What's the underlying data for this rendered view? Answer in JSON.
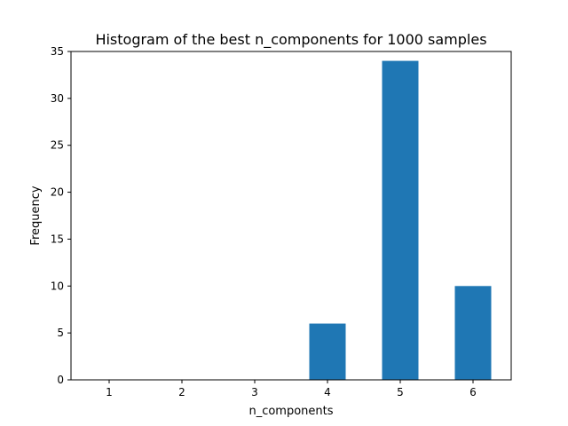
{
  "chart_data": {
    "type": "bar",
    "title": "Histogram of the best n_components for 1000 samples",
    "xlabel": "n_components",
    "ylabel": "Frequency",
    "categories": [
      "1",
      "2",
      "3",
      "4",
      "5",
      "6"
    ],
    "values": [
      0,
      0,
      0,
      6,
      34,
      10
    ],
    "ylim": [
      0,
      35
    ],
    "yticks": [
      "0",
      "5",
      "10",
      "15",
      "20",
      "25",
      "30",
      "35"
    ],
    "bar_color": "#1f77b4",
    "grid": false
  }
}
